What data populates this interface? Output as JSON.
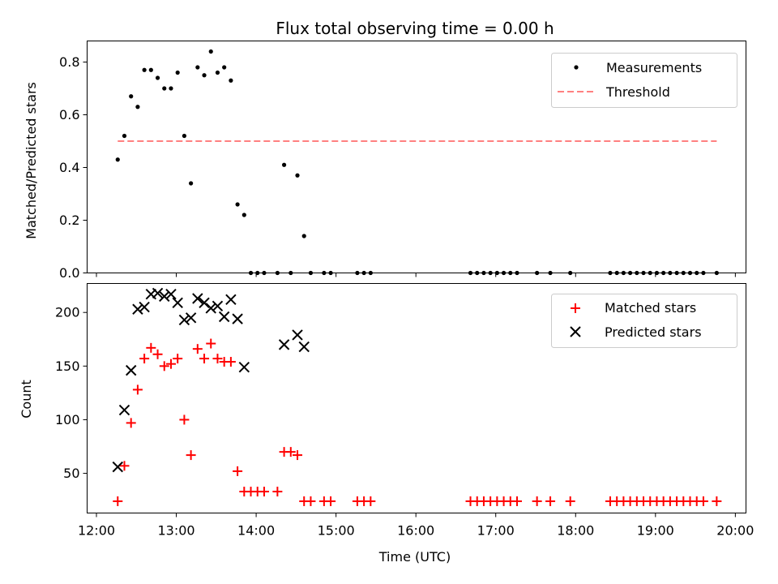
{
  "title": "Flux total observing time = 0.00 h",
  "colors": {
    "measure": "#000000",
    "threshold": "#ff8080",
    "matched": "#ff0000",
    "predicted": "#000000"
  },
  "chart_data": [
    {
      "type": "scatter",
      "name": "ratio-panel",
      "ylabel": "Matched/Predicted stars",
      "ylim": [
        0,
        0.88
      ],
      "yticks": [
        0.0,
        0.2,
        0.4,
        0.6,
        0.8
      ],
      "ytick_labels": [
        "0.0",
        "0.2",
        "0.4",
        "0.6",
        "0.8"
      ],
      "xlim": [
        "11:53",
        "20:08"
      ],
      "legend": {
        "position": "top-right",
        "entries": [
          "Measurements",
          "Threshold"
        ]
      },
      "series": [
        {
          "name": "Measurements",
          "marker": "dot",
          "points": [
            [
              "12:16",
              0.43
            ],
            [
              "12:21",
              0.52
            ],
            [
              "12:26",
              0.67
            ],
            [
              "12:31",
              0.63
            ],
            [
              "12:36",
              0.77
            ],
            [
              "12:41",
              0.77
            ],
            [
              "12:46",
              0.74
            ],
            [
              "12:51",
              0.7
            ],
            [
              "12:56",
              0.7
            ],
            [
              "13:01",
              0.76
            ],
            [
              "13:06",
              0.52
            ],
            [
              "13:11",
              0.34
            ],
            [
              "13:16",
              0.78
            ],
            [
              "13:21",
              0.75
            ],
            [
              "13:26",
              0.84
            ],
            [
              "13:31",
              0.76
            ],
            [
              "13:36",
              0.78
            ],
            [
              "13:41",
              0.73
            ],
            [
              "13:46",
              0.26
            ],
            [
              "13:51",
              0.22
            ],
            [
              "13:56",
              0
            ],
            [
              "14:01",
              0
            ],
            [
              "14:06",
              0
            ],
            [
              "14:16",
              0
            ],
            [
              "14:21",
              0.41
            ],
            [
              "14:26",
              0
            ],
            [
              "14:31",
              0.37
            ],
            [
              "14:36",
              0.14
            ],
            [
              "14:41",
              0
            ],
            [
              "14:51",
              0
            ],
            [
              "14:56",
              0
            ],
            [
              "15:16",
              0
            ],
            [
              "15:21",
              0
            ],
            [
              "15:26",
              0
            ],
            [
              "16:41",
              0
            ],
            [
              "16:46",
              0
            ],
            [
              "16:51",
              0
            ],
            [
              "16:56",
              0
            ],
            [
              "17:01",
              0
            ],
            [
              "17:06",
              0
            ],
            [
              "17:11",
              0
            ],
            [
              "17:16",
              0
            ],
            [
              "17:31",
              0
            ],
            [
              "17:41",
              0
            ],
            [
              "17:56",
              0
            ],
            [
              "18:26",
              0
            ],
            [
              "18:31",
              0
            ],
            [
              "18:36",
              0
            ],
            [
              "18:41",
              0
            ],
            [
              "18:46",
              0
            ],
            [
              "18:51",
              0
            ],
            [
              "18:56",
              0
            ],
            [
              "19:01",
              0
            ],
            [
              "19:06",
              0
            ],
            [
              "19:11",
              0
            ],
            [
              "19:16",
              0
            ],
            [
              "19:21",
              0
            ],
            [
              "19:26",
              0
            ],
            [
              "19:31",
              0
            ],
            [
              "19:36",
              0
            ],
            [
              "19:46",
              0
            ]
          ]
        },
        {
          "name": "Threshold",
          "style": "dashed",
          "points": [
            [
              "12:16",
              0.5
            ],
            [
              "19:46",
              0.5
            ]
          ]
        }
      ]
    },
    {
      "type": "scatter",
      "name": "count-panel",
      "ylabel": "Count",
      "xlabel": "Time (UTC)",
      "ylim": [
        13,
        227
      ],
      "yticks": [
        50,
        100,
        150,
        200
      ],
      "ytick_labels": [
        "50",
        "100",
        "150",
        "200"
      ],
      "xlim": [
        "11:53",
        "20:08"
      ],
      "xticks": [
        "12:00",
        "13:00",
        "14:00",
        "15:00",
        "16:00",
        "17:00",
        "18:00",
        "19:00",
        "20:00"
      ],
      "xtick_labels": [
        "12:00",
        "13:00",
        "14:00",
        "15:00",
        "16:00",
        "17:00",
        "18:00",
        "19:00",
        "20:00"
      ],
      "legend": {
        "position": "top-right",
        "entries": [
          "Matched stars",
          "Predicted stars"
        ]
      },
      "series": [
        {
          "name": "Matched stars",
          "marker": "plus",
          "points": [
            [
              "12:16",
              24
            ],
            [
              "12:21",
              57
            ],
            [
              "12:26",
              97
            ],
            [
              "12:31",
              128
            ],
            [
              "12:36",
              157
            ],
            [
              "12:41",
              167
            ],
            [
              "12:46",
              161
            ],
            [
              "12:51",
              150
            ],
            [
              "12:56",
              152
            ],
            [
              "13:01",
              157
            ],
            [
              "13:06",
              100
            ],
            [
              "13:11",
              67
            ],
            [
              "13:16",
              166
            ],
            [
              "13:21",
              157
            ],
            [
              "13:26",
              171
            ],
            [
              "13:31",
              157
            ],
            [
              "13:36",
              154
            ],
            [
              "13:41",
              154
            ],
            [
              "13:46",
              52
            ],
            [
              "13:51",
              33
            ],
            [
              "13:56",
              33
            ],
            [
              "14:01",
              33
            ],
            [
              "14:06",
              33
            ],
            [
              "14:16",
              33
            ],
            [
              "14:21",
              70
            ],
            [
              "14:26",
              70
            ],
            [
              "14:31",
              67
            ],
            [
              "14:36",
              24
            ],
            [
              "14:41",
              24
            ],
            [
              "14:51",
              24
            ],
            [
              "14:56",
              24
            ],
            [
              "15:16",
              24
            ],
            [
              "15:21",
              24
            ],
            [
              "15:26",
              24
            ],
            [
              "16:41",
              24
            ],
            [
              "16:46",
              24
            ],
            [
              "16:51",
              24
            ],
            [
              "16:56",
              24
            ],
            [
              "17:01",
              24
            ],
            [
              "17:06",
              24
            ],
            [
              "17:11",
              24
            ],
            [
              "17:16",
              24
            ],
            [
              "17:31",
              24
            ],
            [
              "17:41",
              24
            ],
            [
              "17:56",
              24
            ],
            [
              "18:26",
              24
            ],
            [
              "18:31",
              24
            ],
            [
              "18:36",
              24
            ],
            [
              "18:41",
              24
            ],
            [
              "18:46",
              24
            ],
            [
              "18:51",
              24
            ],
            [
              "18:56",
              24
            ],
            [
              "19:01",
              24
            ],
            [
              "19:06",
              24
            ],
            [
              "19:11",
              24
            ],
            [
              "19:16",
              24
            ],
            [
              "19:21",
              24
            ],
            [
              "19:26",
              24
            ],
            [
              "19:31",
              24
            ],
            [
              "19:36",
              24
            ],
            [
              "19:46",
              24
            ]
          ]
        },
        {
          "name": "Predicted stars",
          "marker": "x",
          "points": [
            [
              "12:16",
              56
            ],
            [
              "12:21",
              109
            ],
            [
              "12:26",
              146
            ],
            [
              "12:31",
              203
            ],
            [
              "12:36",
              205
            ],
            [
              "12:41",
              217
            ],
            [
              "12:46",
              218
            ],
            [
              "12:51",
              215
            ],
            [
              "12:56",
              217
            ],
            [
              "13:01",
              209
            ],
            [
              "13:06",
              193
            ],
            [
              "13:11",
              195
            ],
            [
              "13:16",
              213
            ],
            [
              "13:21",
              209
            ],
            [
              "13:26",
              204
            ],
            [
              "13:31",
              206
            ],
            [
              "13:36",
              196
            ],
            [
              "13:41",
              212
            ],
            [
              "13:46",
              194
            ],
            [
              "13:51",
              149
            ],
            [
              "14:21",
              170
            ],
            [
              "14:31",
              179
            ],
            [
              "14:36",
              168
            ]
          ]
        }
      ]
    }
  ]
}
